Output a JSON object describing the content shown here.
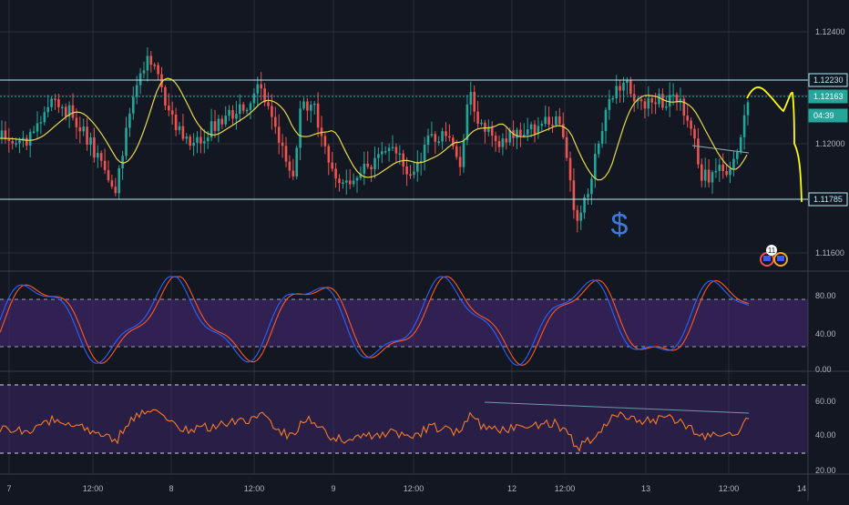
{
  "colors": {
    "background": "#131722",
    "grid": "#2a2e39",
    "candle_up": "#26a69a",
    "candle_down": "#ef5350",
    "ma_line": "#e6d94a",
    "projection": "#ffff00",
    "levels": "#b2ebf2",
    "dollar": "#3d7ad9",
    "stoch_k": "#2962ff",
    "stoch_d": "#ff5722",
    "band": "#4a2a7a",
    "rsi": "#f57c2b",
    "axis_text": "#b2b5be",
    "price_tag_bg": "#26a69a"
  },
  "annotation": {
    "dollar_sign": "$"
  },
  "event_badge": {
    "count": "11"
  },
  "price_axis": {
    "ticks": [
      "1.12400",
      "1.12000",
      "1.11600"
    ],
    "tagged": [
      {
        "label": "1.12230",
        "kind": "level"
      },
      {
        "label": "1.12163",
        "kind": "current"
      },
      {
        "label": "04:39",
        "kind": "countdown"
      },
      {
        "label": "1.11785",
        "kind": "level"
      }
    ]
  },
  "stoch_axis": {
    "ticks": [
      "80.00",
      "40.00",
      "0.00"
    ]
  },
  "rsi_axis": {
    "ticks": [
      "60.00",
      "40.00",
      "20.00"
    ]
  },
  "time_axis": {
    "ticks": [
      "7",
      "12:00",
      "8",
      "12:00",
      "9",
      "12:00",
      "12",
      "12:00",
      "13",
      "12:00",
      "14"
    ]
  },
  "chart_data": {
    "type": "candlestick",
    "panels": [
      {
        "name": "price",
        "ylim": [
          1.1155,
          1.1247
        ],
        "horizontal_levels": [
          1.1223,
          1.12163,
          1.11785
        ],
        "current_price": 1.12163,
        "series": [
          "candlesticks",
          "moving_average",
          "projection"
        ]
      },
      {
        "name": "stochastic",
        "ylim": [
          0,
          100
        ],
        "bands": [
          25,
          75
        ],
        "series": [
          "%K",
          "%D"
        ]
      },
      {
        "name": "rsi",
        "ylim": [
          15,
          80
        ],
        "bands": [
          30,
          70
        ],
        "series": [
          "RSI"
        ]
      }
    ],
    "x_labels": [
      "7",
      "12:00",
      "8",
      "12:00",
      "9",
      "12:00",
      "12",
      "12:00",
      "13",
      "12:00",
      "14"
    ]
  }
}
